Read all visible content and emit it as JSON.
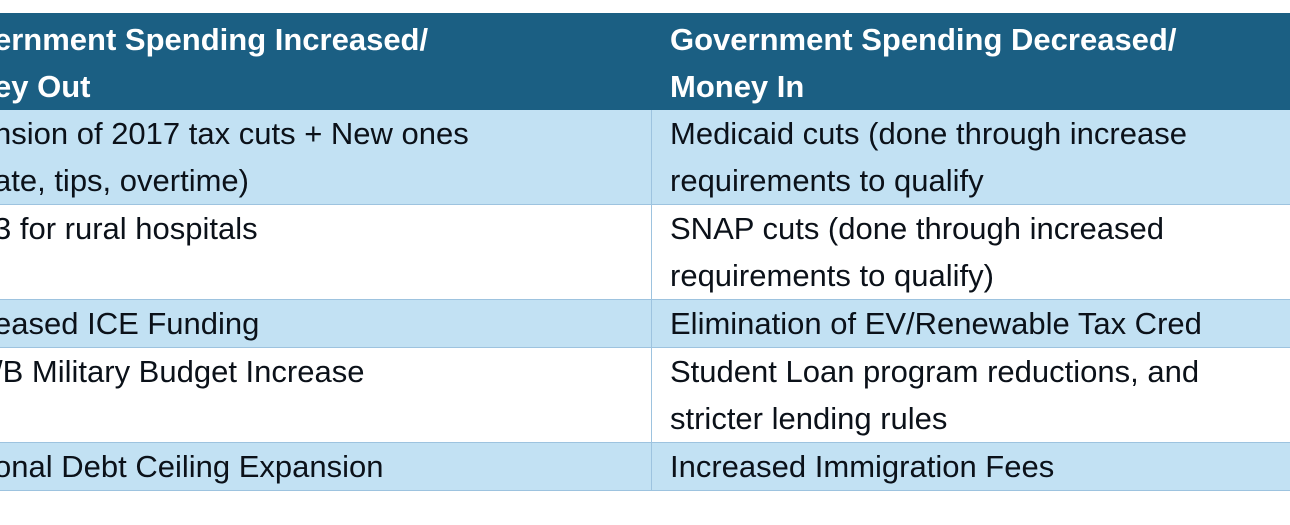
{
  "table": {
    "header": {
      "left": [
        "ernment Spending Increased/",
        "ey Out"
      ],
      "right": [
        "Government Spending Decreased/",
        "Money In"
      ]
    },
    "rows": [
      {
        "left": [
          "nsion of 2017 tax cuts + New ones",
          "ate, tips, overtime)"
        ],
        "right": [
          "Medicaid cuts (done through increase",
          "requirements to qualify"
        ]
      },
      {
        "left": [
          "3 for rural hospitals"
        ],
        "right": [
          "SNAP cuts (done through increased",
          "requirements to qualify)"
        ]
      },
      {
        "left": [
          "eased ICE Funding"
        ],
        "right": [
          "Elimination of EV/Renewable Tax Cred"
        ]
      },
      {
        "left": [
          "/B Military Budget Increase"
        ],
        "right": [
          "Student Loan program reductions, and",
          "stricter lending rules"
        ]
      },
      {
        "left": [
          "onal Debt Ceiling Expansion"
        ],
        "right": [
          "Increased Immigration Fees"
        ]
      }
    ]
  }
}
